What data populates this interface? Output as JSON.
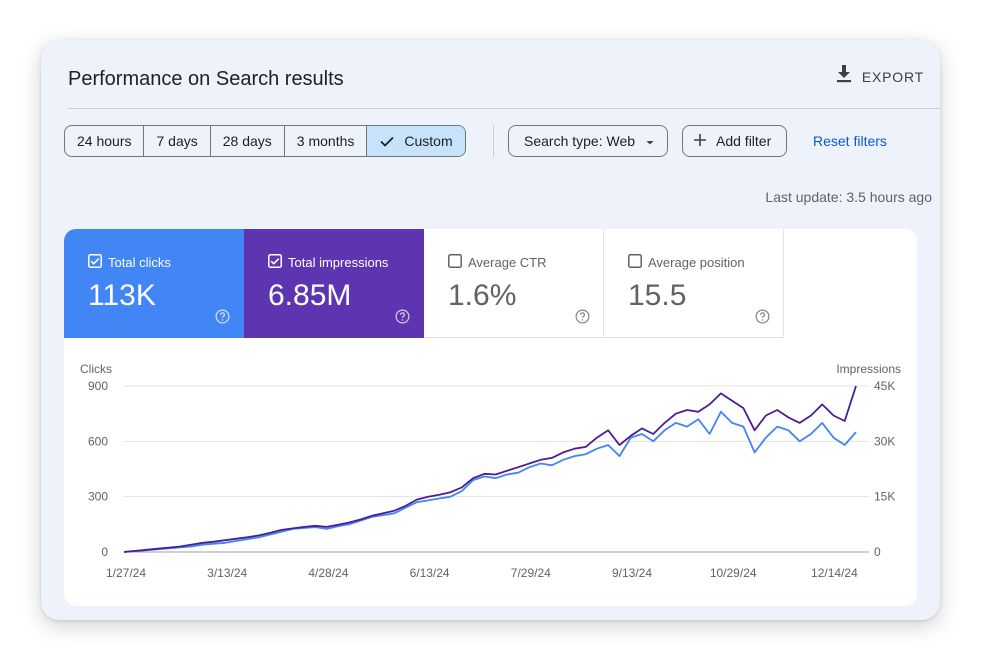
{
  "header": {
    "title": "Performance on Search results",
    "export_label": "EXPORT"
  },
  "date_range": {
    "options": [
      "24 hours",
      "7 days",
      "28 days",
      "3 months",
      "Custom"
    ],
    "selected": "Custom"
  },
  "filters": {
    "search_type": "Search type: Web",
    "add_filter": "Add filter",
    "reset": "Reset filters"
  },
  "last_update": "Last update: 3.5 hours ago",
  "metrics": [
    {
      "label": "Total clicks",
      "value": "113K",
      "checked": true,
      "color": "#4285f4"
    },
    {
      "label": "Total impressions",
      "value": "6.85M",
      "checked": true,
      "color": "#5e35b1"
    },
    {
      "label": "Average CTR",
      "value": "1.6%",
      "checked": false
    },
    {
      "label": "Average position",
      "value": "15.5",
      "checked": false
    }
  ],
  "colors": {
    "clicks": "#4285f4",
    "impressions": "#4a1d96",
    "accent": "#0b57d0",
    "selected_bg": "#c7e2fb"
  },
  "icons": {
    "export": "download-icon",
    "check": "check-icon",
    "dropdown": "caret-down-icon",
    "add": "plus-icon",
    "help": "help-circle-icon"
  },
  "chart_data": {
    "type": "line",
    "x_ticks": [
      "1/27/24",
      "3/13/24",
      "4/28/24",
      "6/13/24",
      "7/29/24",
      "9/13/24",
      "10/29/24",
      "12/14/24"
    ],
    "left_axis": {
      "label": "Clicks",
      "ticks": [
        "0",
        "300",
        "600",
        "900"
      ],
      "ylim": [
        0,
        900
      ]
    },
    "right_axis": {
      "label": "Impressions",
      "ticks": [
        "0",
        "15K",
        "30K",
        "45K"
      ],
      "ylim": [
        0,
        45000
      ]
    },
    "grid": true,
    "series": [
      {
        "name": "Total clicks",
        "axis": "left",
        "color": "#4285f4",
        "values": [
          0,
          5,
          10,
          15,
          20,
          25,
          30,
          40,
          45,
          50,
          60,
          70,
          80,
          95,
          110,
          125,
          130,
          135,
          125,
          140,
          150,
          170,
          190,
          200,
          210,
          240,
          270,
          280,
          290,
          300,
          330,
          390,
          410,
          400,
          420,
          430,
          460,
          480,
          470,
          500,
          520,
          530,
          560,
          580,
          520,
          620,
          640,
          600,
          660,
          700,
          680,
          720,
          640,
          760,
          700,
          680,
          540,
          620,
          680,
          660,
          600,
          640,
          700,
          620,
          580,
          650
        ]
      },
      {
        "name": "Total impressions",
        "axis": "right",
        "color": "#4a1d96",
        "values": [
          0,
          300,
          600,
          900,
          1200,
          1500,
          2000,
          2500,
          2800,
          3200,
          3600,
          4000,
          4500,
          5200,
          6000,
          6400,
          6800,
          7100,
          6800,
          7400,
          8000,
          8800,
          9800,
          10500,
          11200,
          12500,
          14200,
          15000,
          15500,
          16200,
          17500,
          20000,
          21200,
          21000,
          22000,
          23000,
          24000,
          25000,
          25500,
          27000,
          28000,
          28500,
          31000,
          33000,
          29000,
          31500,
          33500,
          32000,
          35000,
          37500,
          38500,
          38000,
          40000,
          43000,
          41000,
          39000,
          33000,
          37000,
          38500,
          36500,
          35000,
          37000,
          40000,
          37000,
          35500,
          45000
        ]
      }
    ]
  }
}
